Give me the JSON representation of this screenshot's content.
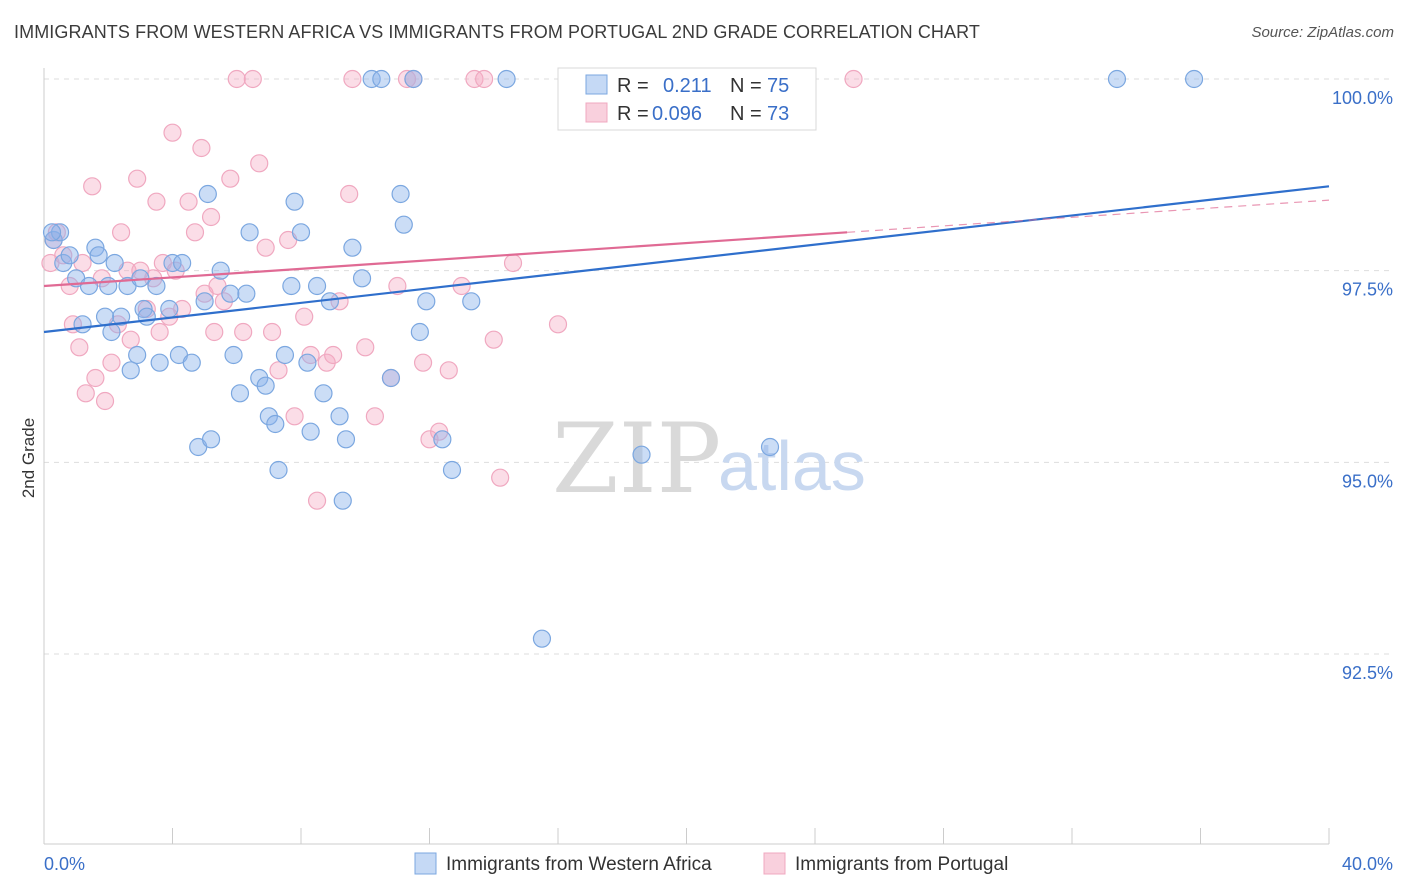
{
  "header": {
    "title": "IMMIGRANTS FROM WESTERN AFRICA VS IMMIGRANTS FROM PORTUGAL 2ND GRADE CORRELATION CHART",
    "source": "Source: ZipAtlas.com"
  },
  "watermark": {
    "zip": "ZIP",
    "atlas": "atlas"
  },
  "chart_data": {
    "type": "scatter",
    "title": "IMMIGRANTS FROM WESTERN AFRICA VS IMMIGRANTS FROM PORTUGAL 2ND GRADE CORRELATION CHART",
    "ylabel": "2nd Grade",
    "xlabel": "",
    "xlim": [
      0,
      40
    ],
    "ylim": [
      90.0,
      100.5
    ],
    "x_tick_labels": {
      "left": "0.0%",
      "right": "40.0%"
    },
    "y_ticks": [
      {
        "value": 100.0,
        "label": "100.0%"
      },
      {
        "value": 97.5,
        "label": "97.5%"
      },
      {
        "value": 95.0,
        "label": "95.0%"
      },
      {
        "value": 92.5,
        "label": "92.5%"
      }
    ],
    "grid": "horizontal dashed",
    "legend_position": "bottom",
    "stats": [
      {
        "series": "Immigrants from Western Africa",
        "r_label": "R =",
        "r": "0.211",
        "n_label": "N =",
        "n": "75"
      },
      {
        "series": "Immigrants from Portugal",
        "r_label": "R =",
        "r": "0.096",
        "n_label": "N =",
        "n": "73"
      }
    ],
    "series": [
      {
        "name": "Immigrants from Western Africa",
        "color": "#7ba7e0",
        "line_color": "#2f6fcc",
        "trend": {
          "x": [
            0,
            40
          ],
          "y": [
            96.7,
            98.6
          ]
        },
        "points": [
          [
            0.3,
            97.9
          ],
          [
            0.5,
            98.0
          ],
          [
            0.6,
            97.6
          ],
          [
            0.8,
            97.7
          ],
          [
            1.0,
            97.4
          ],
          [
            1.2,
            96.8
          ],
          [
            1.4,
            97.3
          ],
          [
            1.6,
            97.8
          ],
          [
            1.7,
            97.7
          ],
          [
            2.0,
            97.3
          ],
          [
            2.1,
            96.7
          ],
          [
            2.2,
            97.6
          ],
          [
            2.4,
            96.9
          ],
          [
            2.6,
            97.3
          ],
          [
            2.7,
            96.2
          ],
          [
            2.9,
            96.4
          ],
          [
            3.1,
            97.0
          ],
          [
            3.2,
            96.9
          ],
          [
            3.5,
            97.3
          ],
          [
            3.6,
            96.3
          ],
          [
            3.9,
            97.0
          ],
          [
            4.0,
            97.6
          ],
          [
            4.2,
            96.4
          ],
          [
            4.3,
            97.6
          ],
          [
            4.6,
            96.3
          ],
          [
            4.8,
            95.2
          ],
          [
            5.0,
            97.1
          ],
          [
            5.1,
            98.5
          ],
          [
            5.2,
            95.3
          ],
          [
            5.5,
            97.5
          ],
          [
            5.8,
            97.2
          ],
          [
            5.9,
            96.4
          ],
          [
            6.1,
            95.9
          ],
          [
            6.3,
            97.2
          ],
          [
            6.4,
            98.0
          ],
          [
            6.7,
            96.1
          ],
          [
            6.9,
            96.0
          ],
          [
            7.0,
            95.6
          ],
          [
            7.2,
            95.5
          ],
          [
            7.3,
            94.9
          ],
          [
            7.5,
            96.4
          ],
          [
            7.7,
            97.3
          ],
          [
            7.8,
            98.4
          ],
          [
            8.0,
            98.0
          ],
          [
            8.2,
            96.3
          ],
          [
            8.3,
            95.4
          ],
          [
            8.5,
            97.3
          ],
          [
            8.7,
            95.9
          ],
          [
            8.9,
            97.1
          ],
          [
            9.2,
            95.6
          ],
          [
            9.3,
            94.5
          ],
          [
            9.4,
            95.3
          ],
          [
            9.6,
            97.8
          ],
          [
            9.9,
            97.4
          ],
          [
            10.2,
            100.0
          ],
          [
            10.8,
            96.1
          ],
          [
            11.1,
            98.5
          ],
          [
            11.2,
            98.1
          ],
          [
            11.5,
            100.0
          ],
          [
            11.7,
            96.7
          ],
          [
            11.9,
            97.1
          ],
          [
            12.4,
            95.3
          ],
          [
            12.7,
            94.9
          ],
          [
            13.3,
            97.1
          ],
          [
            14.4,
            100.0
          ],
          [
            15.5,
            92.7
          ],
          [
            16.3,
            100.0
          ],
          [
            18.6,
            95.1
          ],
          [
            22.6,
            95.2
          ],
          [
            33.4,
            100.0
          ],
          [
            35.8,
            100.0
          ],
          [
            0.25,
            98.0
          ],
          [
            1.9,
            96.9
          ],
          [
            3.0,
            97.4
          ],
          [
            10.5,
            100.0
          ]
        ]
      },
      {
        "name": "Immigrants from Portugal",
        "color": "#f0a8c0",
        "line_color": "#e06a94",
        "trend": {
          "x": [
            0,
            25
          ],
          "y": [
            97.3,
            98.0
          ]
        },
        "points": [
          [
            0.2,
            97.6
          ],
          [
            0.4,
            98.0
          ],
          [
            0.6,
            97.7
          ],
          [
            0.8,
            97.3
          ],
          [
            0.9,
            96.8
          ],
          [
            1.1,
            96.5
          ],
          [
            1.3,
            95.9
          ],
          [
            1.5,
            98.6
          ],
          [
            1.6,
            96.1
          ],
          [
            1.8,
            97.4
          ],
          [
            1.9,
            95.8
          ],
          [
            2.1,
            96.3
          ],
          [
            2.3,
            96.8
          ],
          [
            2.4,
            98.0
          ],
          [
            2.6,
            97.5
          ],
          [
            2.7,
            96.6
          ],
          [
            2.9,
            98.7
          ],
          [
            3.0,
            97.5
          ],
          [
            3.2,
            97.0
          ],
          [
            3.4,
            97.4
          ],
          [
            3.5,
            98.4
          ],
          [
            3.6,
            96.7
          ],
          [
            3.7,
            97.6
          ],
          [
            3.9,
            96.9
          ],
          [
            4.0,
            99.3
          ],
          [
            4.1,
            97.5
          ],
          [
            4.3,
            97.0
          ],
          [
            4.5,
            98.4
          ],
          [
            4.7,
            98.0
          ],
          [
            4.9,
            99.1
          ],
          [
            5.0,
            97.2
          ],
          [
            5.2,
            98.2
          ],
          [
            5.3,
            96.7
          ],
          [
            5.6,
            97.1
          ],
          [
            5.8,
            98.7
          ],
          [
            6.0,
            100.0
          ],
          [
            6.2,
            96.7
          ],
          [
            6.5,
            100.0
          ],
          [
            6.7,
            98.9
          ],
          [
            6.9,
            97.8
          ],
          [
            7.1,
            96.7
          ],
          [
            7.3,
            96.2
          ],
          [
            7.6,
            97.9
          ],
          [
            7.8,
            95.6
          ],
          [
            8.1,
            96.9
          ],
          [
            8.3,
            96.4
          ],
          [
            8.5,
            94.5
          ],
          [
            8.8,
            96.3
          ],
          [
            9.0,
            96.4
          ],
          [
            9.2,
            97.1
          ],
          [
            9.5,
            98.5
          ],
          [
            9.6,
            100.0
          ],
          [
            10.0,
            96.5
          ],
          [
            10.3,
            95.6
          ],
          [
            10.8,
            96.1
          ],
          [
            11.0,
            97.3
          ],
          [
            11.3,
            100.0
          ],
          [
            11.5,
            100.0
          ],
          [
            11.8,
            96.3
          ],
          [
            12.0,
            95.3
          ],
          [
            12.3,
            95.4
          ],
          [
            12.6,
            96.2
          ],
          [
            13.0,
            97.3
          ],
          [
            13.4,
            100.0
          ],
          [
            13.7,
            100.0
          ],
          [
            14.0,
            96.6
          ],
          [
            14.2,
            94.8
          ],
          [
            14.6,
            97.6
          ],
          [
            16.0,
            96.8
          ],
          [
            25.2,
            100.0
          ],
          [
            0.3,
            97.9
          ],
          [
            1.2,
            97.6
          ],
          [
            5.4,
            97.3
          ]
        ]
      }
    ]
  }
}
